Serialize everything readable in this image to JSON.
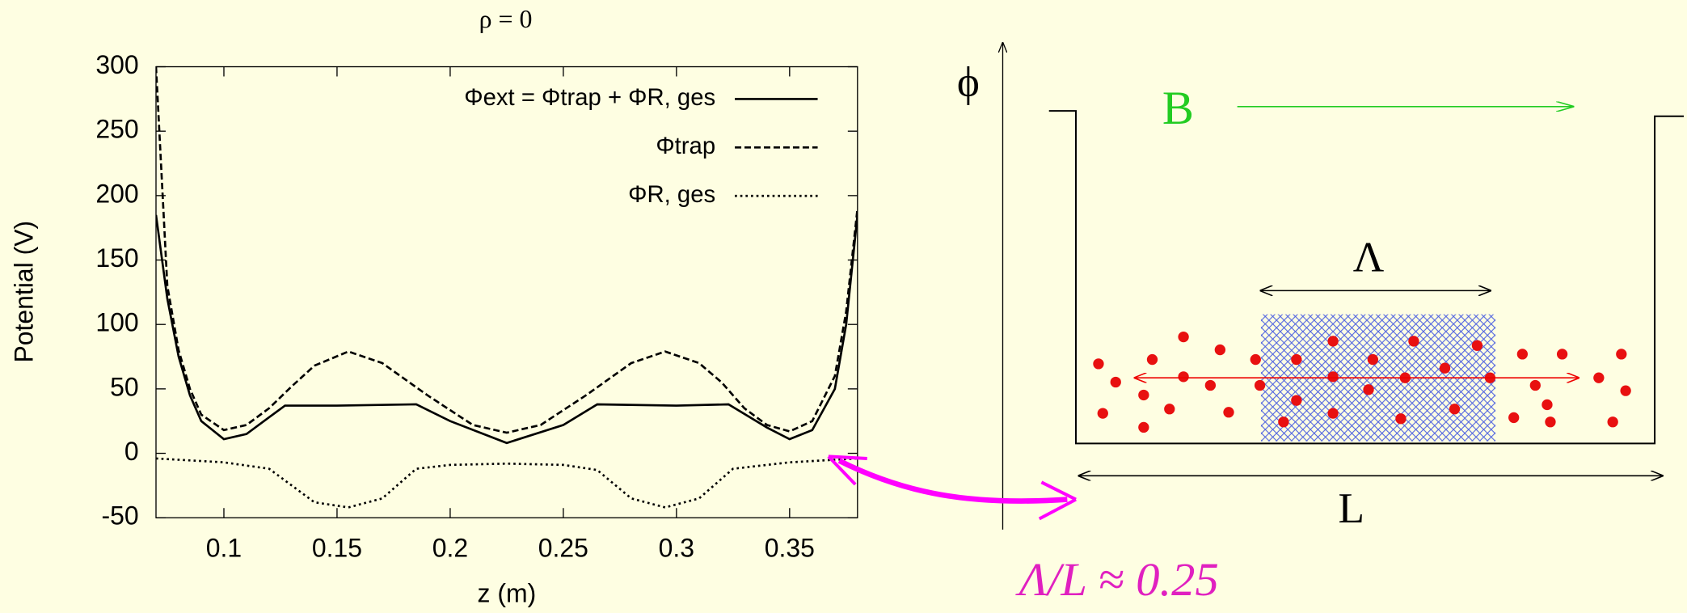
{
  "chart_data": {
    "type": "line",
    "title": "ρ = 0",
    "x_label": "z (m)",
    "y_label": "Potential (V)",
    "xlim": [
      0.07,
      0.38
    ],
    "ylim": [
      -50,
      300
    ],
    "xticks": [
      0.1,
      0.15,
      0.2,
      0.25,
      0.3,
      0.35
    ],
    "yticks": [
      -50,
      0,
      50,
      100,
      150,
      200,
      250,
      300
    ],
    "legend": "upper right",
    "series": [
      {
        "name": "Φext = Φtrap + ΦR, ges",
        "color": "#000000",
        "style": "solid",
        "x": [
          0.07,
          0.075,
          0.08,
          0.085,
          0.09,
          0.1,
          0.11,
          0.12,
          0.127,
          0.15,
          0.185,
          0.2,
          0.225,
          0.25,
          0.265,
          0.3,
          0.323,
          0.34,
          0.35,
          0.36,
          0.37,
          0.375,
          0.38
        ],
        "values": [
          185,
          120,
          75,
          45,
          25,
          11,
          15,
          28,
          37,
          37,
          38,
          25,
          8,
          22,
          38,
          37,
          38,
          20,
          11,
          18,
          50,
          100,
          185
        ]
      },
      {
        "name": "Φtrap",
        "color": "#000000",
        "style": "dashed",
        "x": [
          0.07,
          0.075,
          0.08,
          0.085,
          0.09,
          0.1,
          0.11,
          0.12,
          0.13,
          0.14,
          0.155,
          0.17,
          0.19,
          0.21,
          0.225,
          0.24,
          0.26,
          0.28,
          0.295,
          0.31,
          0.32,
          0.33,
          0.34,
          0.35,
          0.36,
          0.37,
          0.375,
          0.38
        ],
        "values": [
          300,
          130,
          80,
          50,
          30,
          18,
          22,
          35,
          52,
          68,
          79,
          70,
          45,
          22,
          16,
          22,
          45,
          70,
          79,
          70,
          55,
          35,
          22,
          17,
          25,
          60,
          110,
          190
        ]
      },
      {
        "name": "ΦR, ges",
        "color": "#000000",
        "style": "dotted",
        "x": [
          0.07,
          0.1,
          0.12,
          0.13,
          0.14,
          0.155,
          0.17,
          0.185,
          0.2,
          0.225,
          0.25,
          0.265,
          0.28,
          0.295,
          0.31,
          0.325,
          0.35,
          0.38
        ],
        "values": [
          -4,
          -7,
          -12,
          -25,
          -38,
          -42,
          -35,
          -12,
          -9,
          -8,
          -9,
          -13,
          -35,
          -42,
          -35,
          -12,
          -7,
          -4
        ]
      }
    ]
  },
  "diagram": {
    "phi_label": "ϕ",
    "field_label": "B",
    "lambda_label": "Λ",
    "length_label": "L",
    "ratio_label": "Λ/L ≈ 0.25"
  }
}
